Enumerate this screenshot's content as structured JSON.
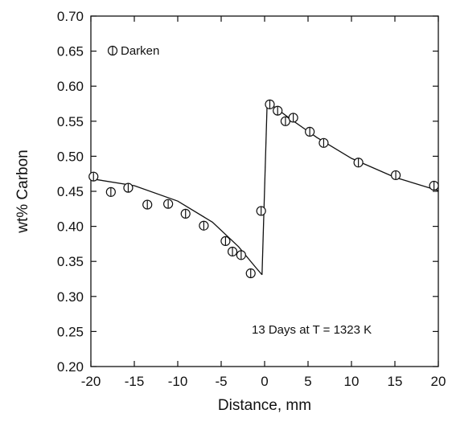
{
  "chart_data": {
    "type": "scatter",
    "xlabel": "Distance, mm",
    "ylabel": "wt% Carbon",
    "xlim": [
      -20,
      20
    ],
    "ylim": [
      0.2,
      0.7
    ],
    "xticks": [
      -20,
      -15,
      -10,
      -5,
      0,
      5,
      10,
      15,
      20
    ],
    "xtick_labels": [
      "-20",
      "-15",
      "-10",
      "-5",
      "0",
      "5",
      "10",
      "15",
      "20"
    ],
    "yticks": [
      0.2,
      0.25,
      0.3,
      0.35,
      0.4,
      0.45,
      0.5,
      0.55,
      0.6,
      0.65,
      0.7
    ],
    "ytick_labels": [
      "0.20",
      "0.25",
      "0.30",
      "0.35",
      "0.40",
      "0.45",
      "0.50",
      "0.55",
      "0.60",
      "0.65",
      "0.70"
    ],
    "grid": false,
    "legend": {
      "placement": "top-left",
      "entries": [
        "Darken"
      ]
    },
    "annotation": "13 Days at T = 1323 K",
    "series": [
      {
        "name": "Darken",
        "marker": "circle-with-vertical-bar",
        "points": [
          {
            "x": -19.7,
            "y": 0.471
          },
          {
            "x": -17.7,
            "y": 0.449
          },
          {
            "x": -15.7,
            "y": 0.455
          },
          {
            "x": -13.5,
            "y": 0.431
          },
          {
            "x": -11.1,
            "y": 0.432
          },
          {
            "x": -9.1,
            "y": 0.418
          },
          {
            "x": -7.0,
            "y": 0.401
          },
          {
            "x": -4.5,
            "y": 0.379
          },
          {
            "x": -3.7,
            "y": 0.364
          },
          {
            "x": -2.7,
            "y": 0.359
          },
          {
            "x": -1.6,
            "y": 0.333
          },
          {
            "x": -0.4,
            "y": 0.422
          },
          {
            "x": 0.6,
            "y": 0.574
          },
          {
            "x": 1.5,
            "y": 0.565
          },
          {
            "x": 2.4,
            "y": 0.55
          },
          {
            "x": 3.3,
            "y": 0.555
          },
          {
            "x": 5.2,
            "y": 0.535
          },
          {
            "x": 6.8,
            "y": 0.519
          },
          {
            "x": 10.8,
            "y": 0.491
          },
          {
            "x": 15.1,
            "y": 0.473
          },
          {
            "x": 19.5,
            "y": 0.458
          }
        ]
      }
    ],
    "fit_curves": [
      {
        "name": "left-fit",
        "points": [
          [
            -20,
            0.468
          ],
          [
            -15,
            0.458
          ],
          [
            -10,
            0.436
          ],
          [
            -6,
            0.406
          ],
          [
            -3,
            0.371
          ],
          [
            -1,
            0.341
          ],
          [
            -0.3,
            0.331
          ]
        ]
      },
      {
        "name": "interface-jump",
        "points": [
          [
            -0.3,
            0.331
          ],
          [
            0.3,
            0.578
          ]
        ]
      },
      {
        "name": "right-fit",
        "points": [
          [
            0.3,
            0.578
          ],
          [
            3,
            0.553
          ],
          [
            6,
            0.527
          ],
          [
            10,
            0.497
          ],
          [
            15,
            0.47
          ],
          [
            20,
            0.451
          ]
        ]
      }
    ]
  }
}
